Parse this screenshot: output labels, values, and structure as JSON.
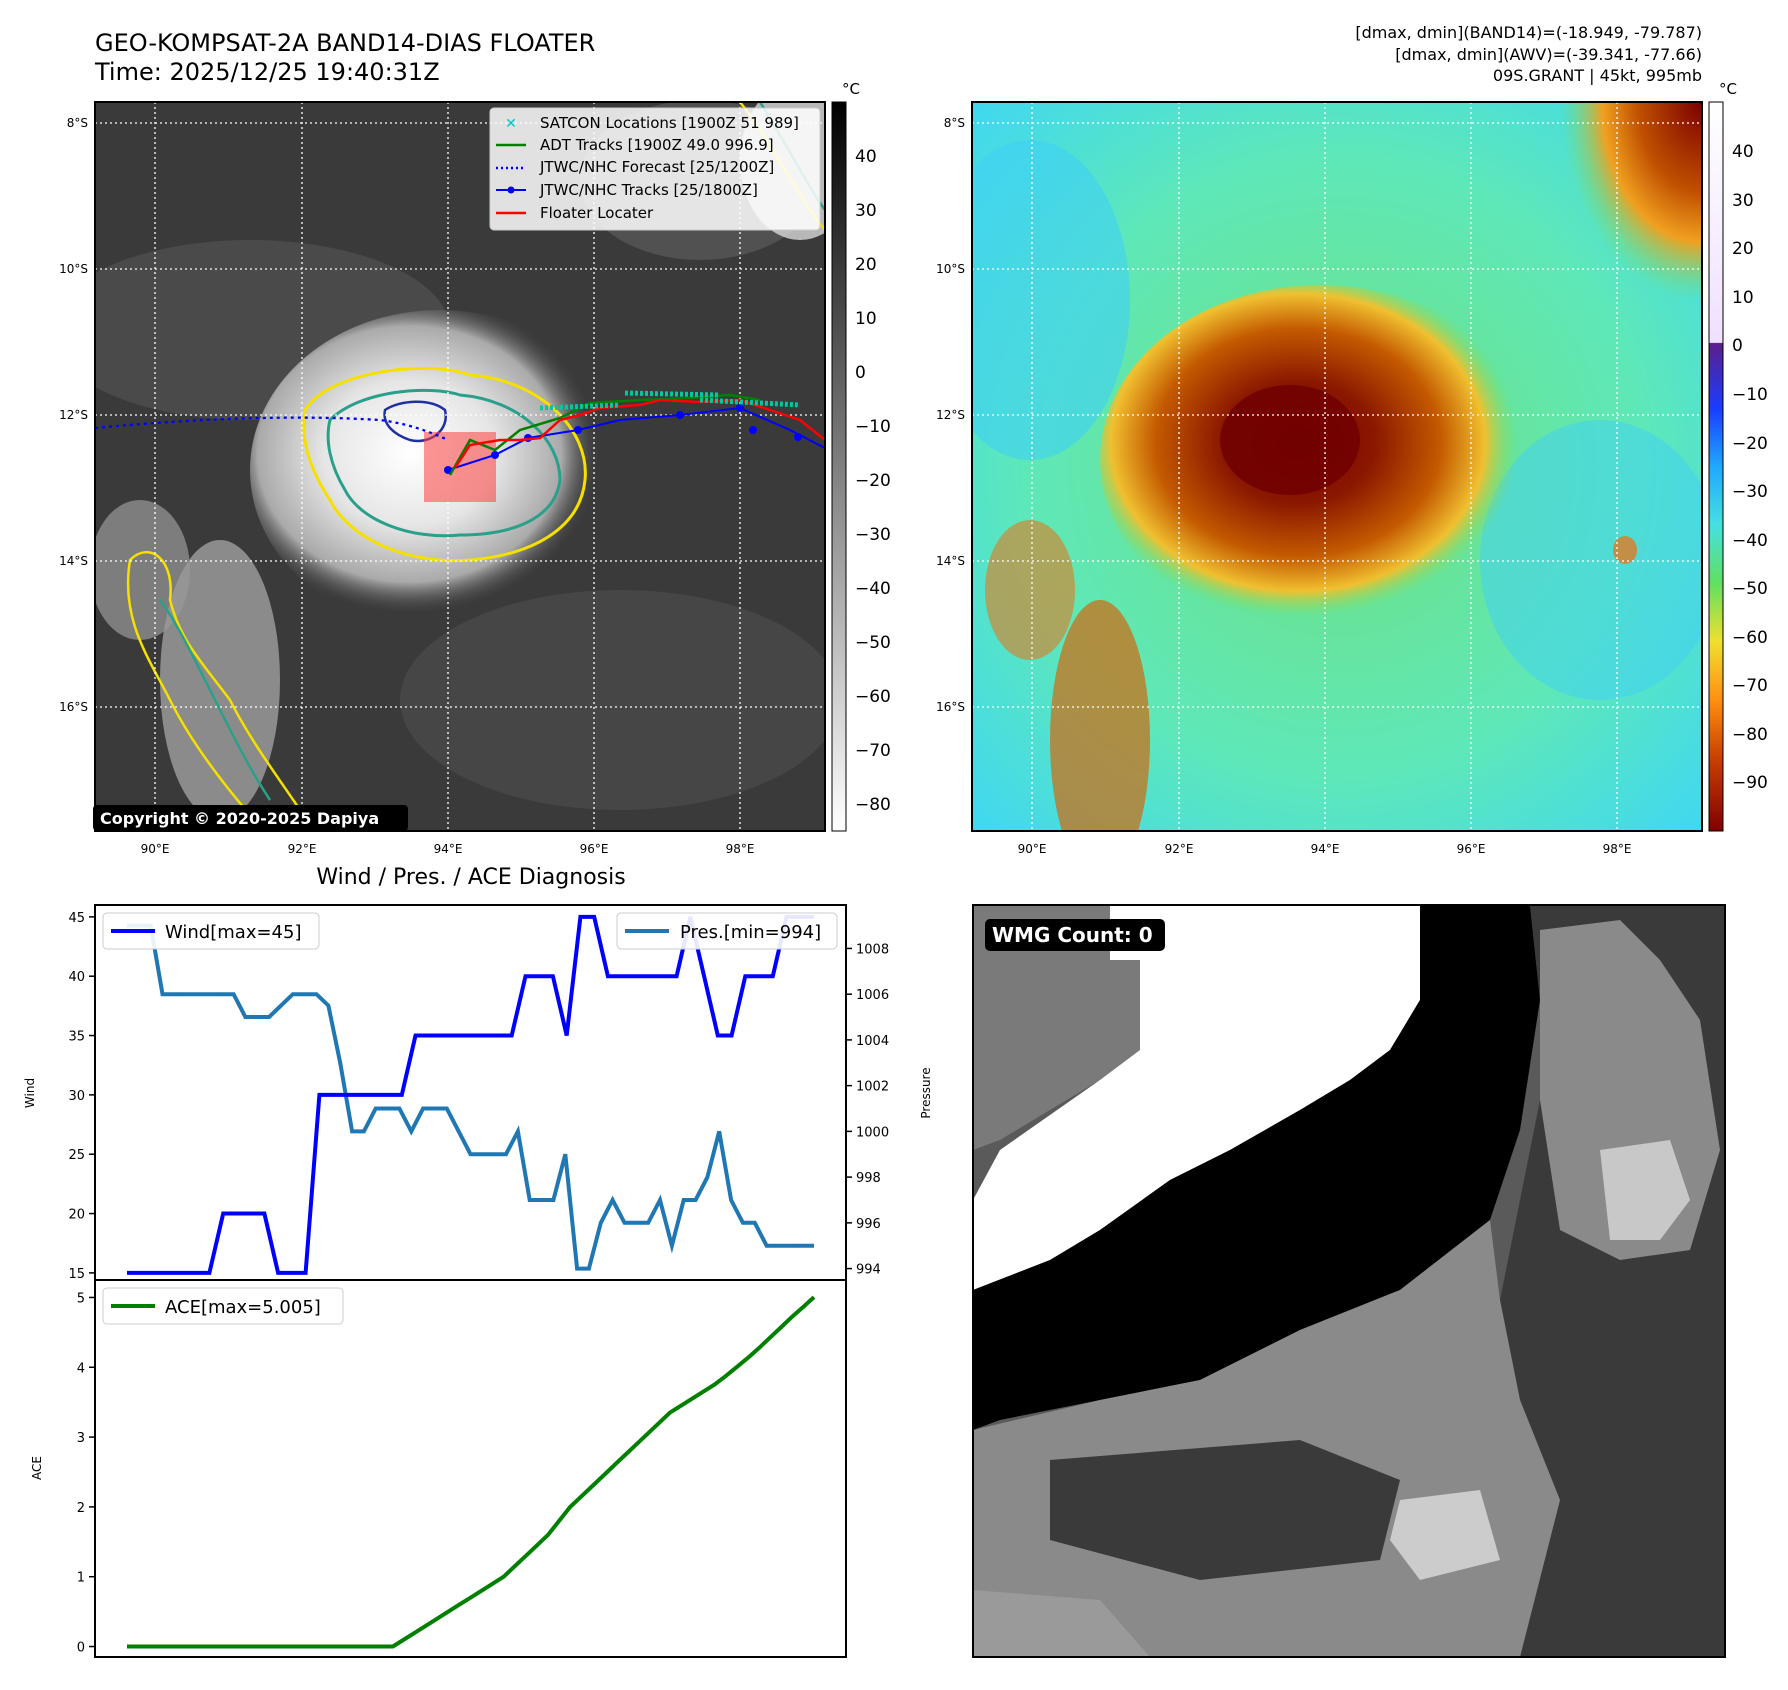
{
  "header": {
    "title_line1": "GEO-KOMPSAT-2A BAND14-DIAS FLOATER",
    "title_line2": "Time: 2025/12/25 19:40:31Z",
    "stats_line1": "[dmax, dmin](BAND14)=(-18.949, -79.787)",
    "stats_line2": "[dmax, dmin](AWV)=(-39.341, -77.66)",
    "stats_line3": "09S.GRANT | 45kt, 995mb"
  },
  "copyright": "Copyright © 2020-2025 Dapiya",
  "map": {
    "lat_labels": [
      "8°S",
      "10°S",
      "12°S",
      "14°S",
      "16°S"
    ],
    "lon_labels": [
      "90°E",
      "92°E",
      "94°E",
      "96°E",
      "98°E"
    ],
    "legend": [
      {
        "label": "SATCON Locations [1900Z 51 989]",
        "color": "#00c8c8",
        "marker": "x"
      },
      {
        "label": "ADT Tracks [1900Z 49.0 996.9]",
        "color": "#008000",
        "marker": "line"
      },
      {
        "label": "JTWC/NHC Forecast [25/1200Z]",
        "color": "#0000ff",
        "marker": "dotted"
      },
      {
        "label": "JTWC/NHC Tracks [25/1800Z]",
        "color": "#0000ff",
        "marker": "line-dot"
      },
      {
        "label": "Floater Locater",
        "color": "#ff0000",
        "marker": "line"
      }
    ]
  },
  "colorbar_gray": {
    "unit": "°C",
    "ticks": [
      "40",
      "30",
      "20",
      "10",
      "0",
      "−10",
      "−20",
      "−30",
      "−40",
      "−50",
      "−60",
      "−70",
      "−80"
    ]
  },
  "colorbar_color": {
    "unit": "°C",
    "ticks": [
      "40",
      "30",
      "20",
      "10",
      "0",
      "−10",
      "−20",
      "−30",
      "−40",
      "−50",
      "−60",
      "−70",
      "−80",
      "−90"
    ]
  },
  "wmg": {
    "label": "WMG Count: 0"
  },
  "chart_data": [
    {
      "type": "line",
      "title": "Wind / Pres. / ACE Diagnosis",
      "ylabel": "Wind",
      "y2label": "Pressure",
      "ylim": [
        14.4,
        46
      ],
      "y2lim": [
        993.5,
        1009.9
      ],
      "yticks": [
        15,
        20,
        25,
        30,
        35,
        40,
        45
      ],
      "y2ticks": [
        994,
        996,
        998,
        1000,
        1002,
        1004,
        1006,
        1008
      ],
      "series": [
        {
          "name": "Wind[max=45]",
          "color": "#0000ff",
          "axis": "left",
          "values": [
            15,
            15,
            15,
            15,
            15,
            15,
            15,
            20,
            20,
            20,
            20,
            15,
            15,
            15,
            30,
            30,
            30,
            30,
            30,
            30,
            30,
            35,
            35,
            35,
            35,
            35,
            35,
            35,
            35,
            40,
            40,
            40,
            35,
            45,
            45,
            40,
            40,
            40,
            40,
            40,
            40,
            45,
            40,
            35,
            35,
            40,
            40,
            40,
            45,
            45,
            45
          ]
        },
        {
          "name": "Pres.[min=994]",
          "color": "#1f77b4",
          "axis": "right",
          "values": [
            1009,
            1009,
            1009,
            1006,
            1006,
            1006,
            1006,
            1006,
            1006,
            1006,
            1005,
            1005,
            1005,
            1005.5,
            1006,
            1006,
            1006,
            1005.5,
            1003,
            1000,
            1000,
            1001,
            1001,
            1001,
            1000,
            1001,
            1001,
            1001,
            1000,
            999,
            999,
            999,
            999,
            1000,
            997,
            997,
            997,
            999,
            994,
            994,
            996,
            997,
            996,
            996,
            996,
            997,
            995,
            997,
            997,
            998,
            1000,
            997,
            996,
            996,
            995,
            995,
            995,
            995,
            995
          ]
        }
      ]
    },
    {
      "type": "line",
      "ylabel": "ACE",
      "ylim": [
        -0.15,
        5.25
      ],
      "yticks": [
        0,
        1,
        2,
        3,
        4,
        5
      ],
      "series": [
        {
          "name": "ACE[max=5.005]",
          "color": "#008000",
          "values": [
            0,
            0,
            0,
            0,
            0,
            0,
            0,
            0,
            0,
            0,
            0,
            0,
            0,
            0,
            0,
            0,
            0,
            0,
            0,
            0,
            0,
            0,
            0,
            0,
            0,
            0.1,
            0.2,
            0.3,
            0.4,
            0.5,
            0.6,
            0.7,
            0.8,
            0.9,
            1.0,
            1.15,
            1.3,
            1.45,
            1.6,
            1.8,
            2.0,
            2.15,
            2.3,
            2.45,
            2.6,
            2.75,
            2.9,
            3.05,
            3.2,
            3.35,
            3.45,
            3.55,
            3.65,
            3.75,
            3.87,
            4.0,
            4.13,
            4.27,
            4.42,
            4.57,
            4.72,
            4.86,
            5.005
          ]
        }
      ]
    }
  ]
}
